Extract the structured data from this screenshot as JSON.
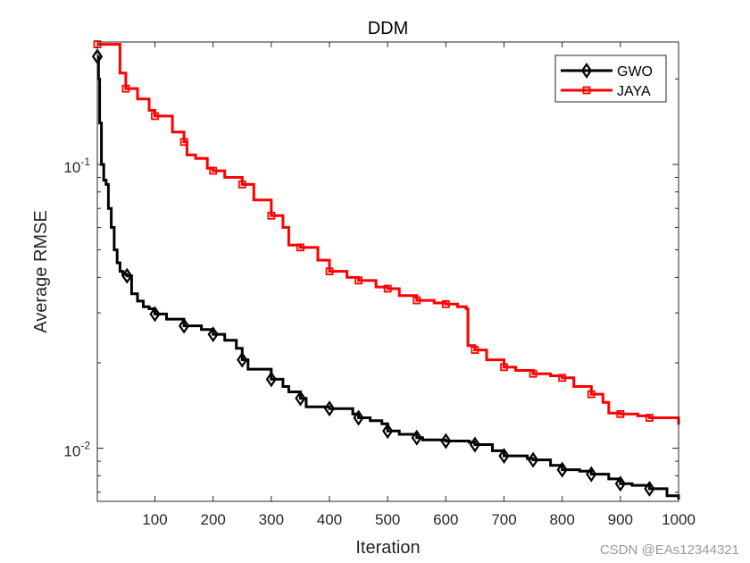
{
  "chart_data": {
    "type": "line",
    "title": "DDM",
    "xlabel": "Iteration",
    "ylabel": "Average RMSE",
    "xlim": [
      1,
      1000
    ],
    "ylim": [
      0.0065,
      0.27
    ],
    "yscale": "log",
    "xticks": [
      100,
      200,
      300,
      400,
      500,
      600,
      700,
      800,
      900,
      1000
    ],
    "xtick_labels": [
      "100",
      "200",
      "300",
      "400",
      "500",
      "600",
      "700",
      "800",
      "900",
      "1000"
    ],
    "yticks": [
      {
        "value": 0.1,
        "base": "10",
        "exp": "-1"
      },
      {
        "value": 0.01,
        "base": "10",
        "exp": "-2"
      }
    ],
    "legend_position": "top-right",
    "series": [
      {
        "name": "GWO",
        "color": "#000000",
        "marker": "diamond",
        "points": [
          [
            1,
            0.24
          ],
          [
            3,
            0.2
          ],
          [
            5,
            0.14
          ],
          [
            8,
            0.1
          ],
          [
            12,
            0.088
          ],
          [
            16,
            0.085
          ],
          [
            20,
            0.07
          ],
          [
            25,
            0.06
          ],
          [
            30,
            0.05
          ],
          [
            35,
            0.045
          ],
          [
            40,
            0.042
          ],
          [
            45,
            0.041
          ],
          [
            52,
            0.0405
          ],
          [
            60,
            0.035
          ],
          [
            70,
            0.033
          ],
          [
            80,
            0.0315
          ],
          [
            90,
            0.031
          ],
          [
            100,
            0.0297
          ],
          [
            120,
            0.0285
          ],
          [
            150,
            0.027
          ],
          [
            180,
            0.0262
          ],
          [
            200,
            0.0252
          ],
          [
            220,
            0.024
          ],
          [
            240,
            0.0225
          ],
          [
            250,
            0.0205
          ],
          [
            260,
            0.019
          ],
          [
            280,
            0.019
          ],
          [
            300,
            0.0175
          ],
          [
            320,
            0.0165
          ],
          [
            330,
            0.0158
          ],
          [
            350,
            0.015
          ],
          [
            360,
            0.014
          ],
          [
            400,
            0.0138
          ],
          [
            440,
            0.0132
          ],
          [
            450,
            0.0128
          ],
          [
            470,
            0.0125
          ],
          [
            490,
            0.0122
          ],
          [
            500,
            0.0115
          ],
          [
            520,
            0.0112
          ],
          [
            550,
            0.0109
          ],
          [
            560,
            0.0107
          ],
          [
            600,
            0.0106
          ],
          [
            640,
            0.0105
          ],
          [
            650,
            0.0103
          ],
          [
            680,
            0.0098
          ],
          [
            700,
            0.0094
          ],
          [
            740,
            0.0092
          ],
          [
            750,
            0.0091
          ],
          [
            780,
            0.0087
          ],
          [
            800,
            0.0084
          ],
          [
            830,
            0.0083
          ],
          [
            850,
            0.0081
          ],
          [
            880,
            0.0078
          ],
          [
            900,
            0.0075
          ],
          [
            920,
            0.0074
          ],
          [
            950,
            0.0072
          ],
          [
            980,
            0.0068
          ],
          [
            1000,
            0.0066
          ]
        ],
        "marker_x": [
          1,
          52,
          100,
          150,
          200,
          250,
          300,
          350,
          400,
          450,
          500,
          550,
          600,
          650,
          700,
          750,
          800,
          850,
          900,
          950
        ]
      },
      {
        "name": "JAYA",
        "color": "#ff0000",
        "marker": "square",
        "points": [
          [
            1,
            0.265
          ],
          [
            30,
            0.265
          ],
          [
            40,
            0.21
          ],
          [
            50,
            0.185
          ],
          [
            70,
            0.17
          ],
          [
            90,
            0.155
          ],
          [
            100,
            0.148
          ],
          [
            130,
            0.13
          ],
          [
            150,
            0.12
          ],
          [
            155,
            0.108
          ],
          [
            170,
            0.105
          ],
          [
            190,
            0.097
          ],
          [
            200,
            0.095
          ],
          [
            220,
            0.09
          ],
          [
            250,
            0.085
          ],
          [
            270,
            0.075
          ],
          [
            300,
            0.066
          ],
          [
            320,
            0.06
          ],
          [
            330,
            0.052
          ],
          [
            350,
            0.051
          ],
          [
            380,
            0.046
          ],
          [
            400,
            0.042
          ],
          [
            430,
            0.04
          ],
          [
            450,
            0.039
          ],
          [
            480,
            0.037
          ],
          [
            500,
            0.0365
          ],
          [
            520,
            0.0345
          ],
          [
            550,
            0.0332
          ],
          [
            580,
            0.0325
          ],
          [
            600,
            0.0322
          ],
          [
            620,
            0.0315
          ],
          [
            635,
            0.031
          ],
          [
            638,
            0.023
          ],
          [
            650,
            0.0222
          ],
          [
            670,
            0.0205
          ],
          [
            700,
            0.0193
          ],
          [
            720,
            0.0188
          ],
          [
            750,
            0.0183
          ],
          [
            780,
            0.018
          ],
          [
            800,
            0.0177
          ],
          [
            820,
            0.0165
          ],
          [
            850,
            0.0155
          ],
          [
            870,
            0.0145
          ],
          [
            880,
            0.0133
          ],
          [
            900,
            0.0132
          ],
          [
            930,
            0.013
          ],
          [
            950,
            0.0128
          ],
          [
            990,
            0.0128
          ],
          [
            1000,
            0.0121
          ]
        ],
        "marker_x": [
          1,
          50,
          100,
          150,
          200,
          250,
          300,
          350,
          400,
          450,
          500,
          550,
          600,
          650,
          700,
          750,
          800,
          850,
          900,
          950
        ]
      }
    ]
  },
  "watermark": "CSDN @EAs12344321"
}
